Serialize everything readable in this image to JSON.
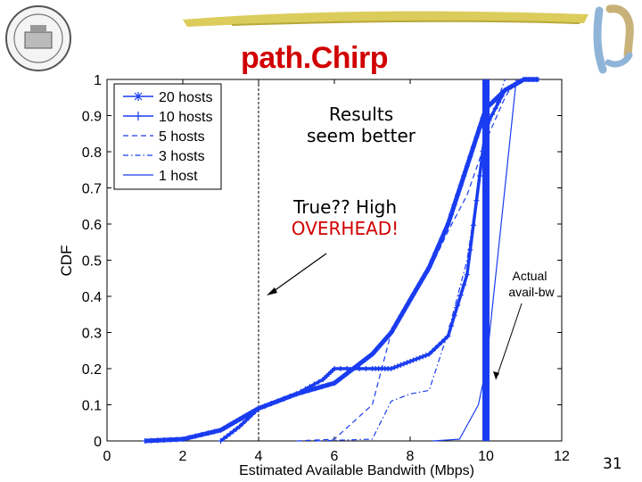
{
  "slide": {
    "title": "path.Chirp",
    "page_number": "31",
    "annotation_results": [
      "Results",
      "seem better"
    ],
    "annotation_true": "True?? High",
    "annotation_overhead": "OVERHEAD!",
    "annotation_overhead_color": "#d10000",
    "actual_label": [
      "Actual",
      "avail-bw"
    ]
  },
  "chart_data": {
    "type": "line",
    "xlabel": "Estimated Available Bandwith (Mbps)",
    "ylabel": "CDF",
    "xlim": [
      0,
      12
    ],
    "ylim": [
      0,
      1
    ],
    "xticks": [
      0,
      2,
      4,
      6,
      8,
      10,
      12
    ],
    "yticks": [
      0,
      0.1,
      0.2,
      0.3,
      0.4,
      0.5,
      0.6,
      0.7,
      0.8,
      0.9,
      1
    ],
    "legend_position": "top-left",
    "actual_avail_bw": 10,
    "reference_x": 4,
    "series": [
      {
        "name": "20 hosts",
        "style": "star",
        "color": "#1a3cf0",
        "x": [
          1,
          2,
          3,
          3.5,
          4,
          5,
          6,
          7,
          7.5,
          8,
          8.5,
          9,
          9.5,
          10,
          10.5,
          11,
          11.4
        ],
        "y": [
          0,
          0.005,
          0.03,
          0.06,
          0.09,
          0.13,
          0.16,
          0.24,
          0.3,
          0.39,
          0.48,
          0.6,
          0.76,
          0.92,
          0.97,
          1.0,
          1.0
        ]
      },
      {
        "name": "10 hosts",
        "style": "plus",
        "color": "#1a3cf0",
        "x": [
          3,
          3.5,
          4,
          5,
          5.7,
          6,
          7,
          7.5,
          8,
          8.5,
          9,
          9.5,
          10,
          10.5,
          11
        ],
        "y": [
          0,
          0.04,
          0.09,
          0.13,
          0.17,
          0.2,
          0.2,
          0.2,
          0.22,
          0.24,
          0.29,
          0.46,
          0.87,
          0.97,
          1.0
        ]
      },
      {
        "name": "5 hosts",
        "style": "dashed",
        "color": "#1a3cf0",
        "x": [
          5,
          6,
          7,
          7.5,
          8,
          8.5,
          9,
          9.5,
          10,
          10.5,
          10.8
        ],
        "y": [
          0,
          0.005,
          0.1,
          0.3,
          0.4,
          0.47,
          0.58,
          0.68,
          0.83,
          0.95,
          1.0
        ]
      },
      {
        "name": "3 hosts",
        "style": "dashdot",
        "color": "#1a3cf0",
        "x": [
          5.5,
          7,
          7.5,
          8,
          8.5,
          9,
          9.5,
          10,
          10.5
        ],
        "y": [
          0,
          0.005,
          0.11,
          0.13,
          0.14,
          0.3,
          0.5,
          0.85,
          1.0
        ]
      },
      {
        "name": "1 host",
        "style": "solid",
        "color": "#1a3cf0",
        "x": [
          8.6,
          9.3,
          9.8,
          10,
          10.2,
          10.5,
          10.8
        ],
        "y": [
          0,
          0.005,
          0.1,
          0.2,
          0.4,
          0.7,
          1.0
        ]
      }
    ]
  }
}
